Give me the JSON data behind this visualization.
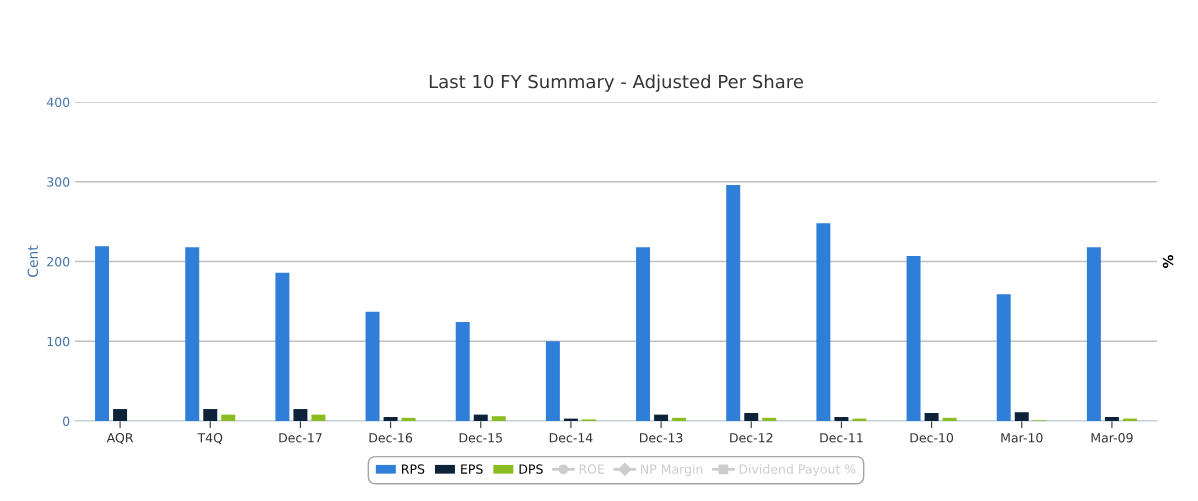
{
  "chart_data": {
    "type": "bar",
    "title": "Last 10 FY Summary - Adjusted Per Share",
    "ylabel": "Cent",
    "y2label": "%",
    "categories": [
      "AQR",
      "T4Q",
      "Dec-17",
      "Dec-16",
      "Dec-15",
      "Dec-14",
      "Dec-13",
      "Dec-12",
      "Dec-11",
      "Dec-10",
      "Mar-10",
      "Mar-09"
    ],
    "series": [
      {
        "name": "RPS",
        "color": "#2f7ed8",
        "values": [
          219,
          218,
          186,
          137,
          124,
          100,
          218,
          296,
          248,
          207,
          159,
          218
        ]
      },
      {
        "name": "EPS",
        "color": "#0d233a",
        "values": [
          15,
          15,
          15,
          5,
          8,
          3,
          8,
          10,
          5,
          10,
          11,
          5
        ]
      },
      {
        "name": "DPS",
        "color": "#8bbc21",
        "values": [
          0,
          8,
          8,
          4,
          6,
          2,
          4,
          4,
          3,
          4,
          1,
          3
        ]
      },
      {
        "name": "ROE",
        "type": "line",
        "axis": "y2",
        "marker": "circle",
        "color": "#cccccc",
        "values": [
          null,
          null,
          null,
          null,
          null,
          null,
          null,
          null,
          null,
          null,
          null,
          null
        ]
      },
      {
        "name": "NP Margin",
        "type": "line",
        "axis": "y2",
        "marker": "diamond",
        "color": "#cccccc",
        "values": [
          null,
          null,
          null,
          null,
          null,
          null,
          null,
          null,
          null,
          null,
          null,
          null
        ]
      },
      {
        "name": "Dividend Payout %",
        "type": "line",
        "axis": "y2",
        "marker": "square",
        "color": "#cccccc",
        "values": [
          null,
          null,
          null,
          null,
          null,
          null,
          null,
          null,
          null,
          null,
          null,
          null
        ]
      }
    ],
    "ylim": [
      0,
      400
    ],
    "yticks": [
      0,
      100,
      200,
      300,
      400
    ],
    "grid": "y",
    "legend": "bottom"
  }
}
